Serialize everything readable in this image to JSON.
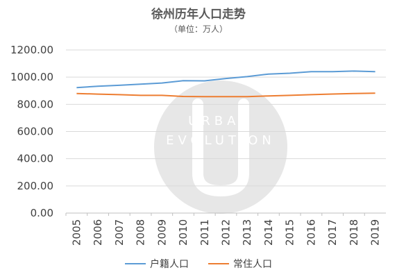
{
  "chart_data": {
    "type": "line",
    "title": "徐州历年人口走势",
    "subtitle": "（单位：万人）",
    "x": [
      "2005",
      "2006",
      "2007",
      "2008",
      "2009",
      "2010",
      "2011",
      "2012",
      "2013",
      "2014",
      "2015",
      "2016",
      "2017",
      "2018",
      "2019"
    ],
    "ylim": [
      0,
      1200
    ],
    "yticks": [
      "0.00",
      "200.00",
      "400.00",
      "600.00",
      "800.00",
      "1000.00",
      "1200.00"
    ],
    "grid": true,
    "legend_position": "bottom",
    "watermark": "URBAN EVOLUTION",
    "series": [
      {
        "name": "户籍人口",
        "color": "#5B9BD5",
        "values": [
          923,
          933,
          940,
          948,
          957,
          974,
          973,
          990,
          1004,
          1023,
          1029,
          1040,
          1040,
          1045,
          1040
        ]
      },
      {
        "name": "常住人口",
        "color": "#ED7D31",
        "values": [
          880,
          875,
          871,
          866,
          866,
          858,
          857,
          857,
          857,
          862,
          866,
          871,
          876,
          880,
          882
        ]
      }
    ]
  }
}
